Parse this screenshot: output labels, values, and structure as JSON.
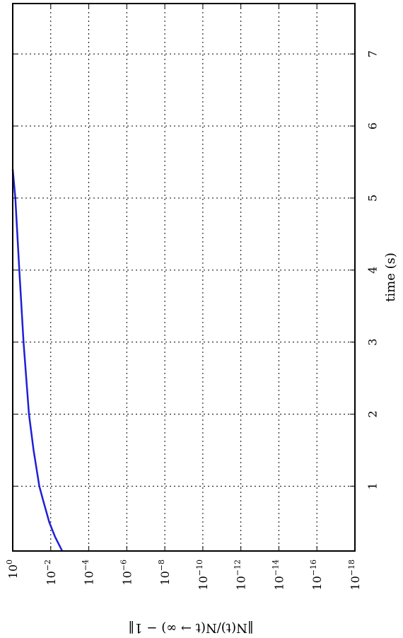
{
  "chart_data": {
    "type": "line",
    "orientation": "rotated 90° clockwise (time axis on the right side, log axis along the bottom)",
    "x": {
      "label": "time (s)",
      "ticks": [
        1,
        2,
        3,
        4,
        5,
        6,
        7
      ],
      "tick_labels": [
        "1",
        "2",
        "3",
        "4",
        "5",
        "6",
        "7"
      ],
      "range": [
        0.1,
        7.7
      ]
    },
    "y": {
      "label": "‖N(t)/N(t → ∞) − 1‖",
      "scale": "log",
      "ticks_exp": [
        0,
        -2,
        -4,
        -6,
        -8,
        -10,
        -12,
        -14,
        -16,
        -18
      ],
      "tick_base": "10",
      "range_exp": [
        0,
        -18
      ]
    },
    "grid": true,
    "series": [
      {
        "color": "#1f1fd6",
        "points": [
          [
            0.1,
            0.0025
          ],
          [
            0.3,
            0.006
          ],
          [
            0.5,
            0.012
          ],
          [
            0.8,
            0.025
          ],
          [
            1.0,
            0.04
          ],
          [
            1.5,
            0.08
          ],
          [
            2.0,
            0.14
          ],
          [
            3.0,
            0.27
          ],
          [
            4.0,
            0.45
          ],
          [
            5.0,
            0.73
          ],
          [
            5.4,
            1.0
          ]
        ]
      }
    ]
  }
}
